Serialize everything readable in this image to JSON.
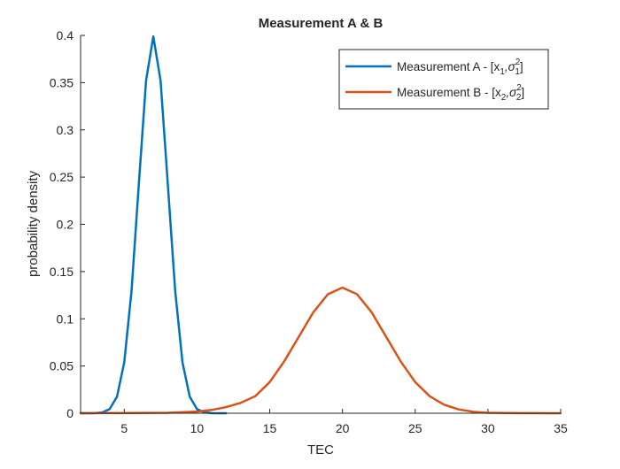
{
  "chart_data": {
    "type": "line",
    "title": "Measurement A & B",
    "xlabel": "TEC",
    "ylabel": "probability density",
    "xlim": [
      2,
      35
    ],
    "ylim": [
      0,
      0.4
    ],
    "x_ticks": [
      5,
      10,
      15,
      20,
      25,
      30,
      35
    ],
    "y_ticks": [
      0,
      0.05,
      0.1,
      0.15,
      0.2,
      0.25,
      0.3,
      0.35,
      0.4
    ],
    "x_tick_labels": [
      "5",
      "10",
      "15",
      "20",
      "25",
      "30",
      "35"
    ],
    "y_tick_labels": [
      "0",
      "0.05",
      "0.1",
      "0.15",
      "0.2",
      "0.25",
      "0.3",
      "0.35",
      "0.4"
    ],
    "grid": false,
    "legend_position": "top-right",
    "series": [
      {
        "legend_main": "Measurement A - [x",
        "legend_sub1": "1",
        "legend_sep": ",σ",
        "legend_sup": "2",
        "legend_sub2": "1",
        "legend_end": "]",
        "color": "#0072BD",
        "x": [
          2,
          3,
          3.5,
          4,
          4.5,
          5,
          5.5,
          6,
          6.5,
          7,
          7.5,
          8,
          8.5,
          9,
          9.5,
          10,
          10.5,
          11,
          11.5,
          12
        ],
        "y": [
          0.0,
          0.0001,
          0.0009,
          0.0044,
          0.0175,
          0.054,
          0.1295,
          0.242,
          0.352,
          0.399,
          0.352,
          0.242,
          0.1295,
          0.054,
          0.0175,
          0.0044,
          0.0009,
          0.0001,
          0.0,
          0.0
        ]
      },
      {
        "legend_main": "Measurement B - [x",
        "legend_sub1": "2",
        "legend_sep": ",σ",
        "legend_sup": "2",
        "legend_sub2": "2",
        "legend_end": "]",
        "color": "#D95319",
        "x": [
          2,
          8,
          10,
          11,
          12,
          13,
          14,
          15,
          16,
          17,
          18,
          19,
          20,
          21,
          22,
          23,
          24,
          25,
          26,
          27,
          28,
          29,
          30,
          32,
          35
        ],
        "y": [
          0.0,
          0.0005,
          0.0018,
          0.0035,
          0.0065,
          0.011,
          0.018,
          0.033,
          0.055,
          0.081,
          0.107,
          0.126,
          0.133,
          0.126,
          0.107,
          0.081,
          0.055,
          0.033,
          0.018,
          0.009,
          0.004,
          0.0015,
          0.0005,
          0.0001,
          0.0
        ]
      }
    ]
  }
}
